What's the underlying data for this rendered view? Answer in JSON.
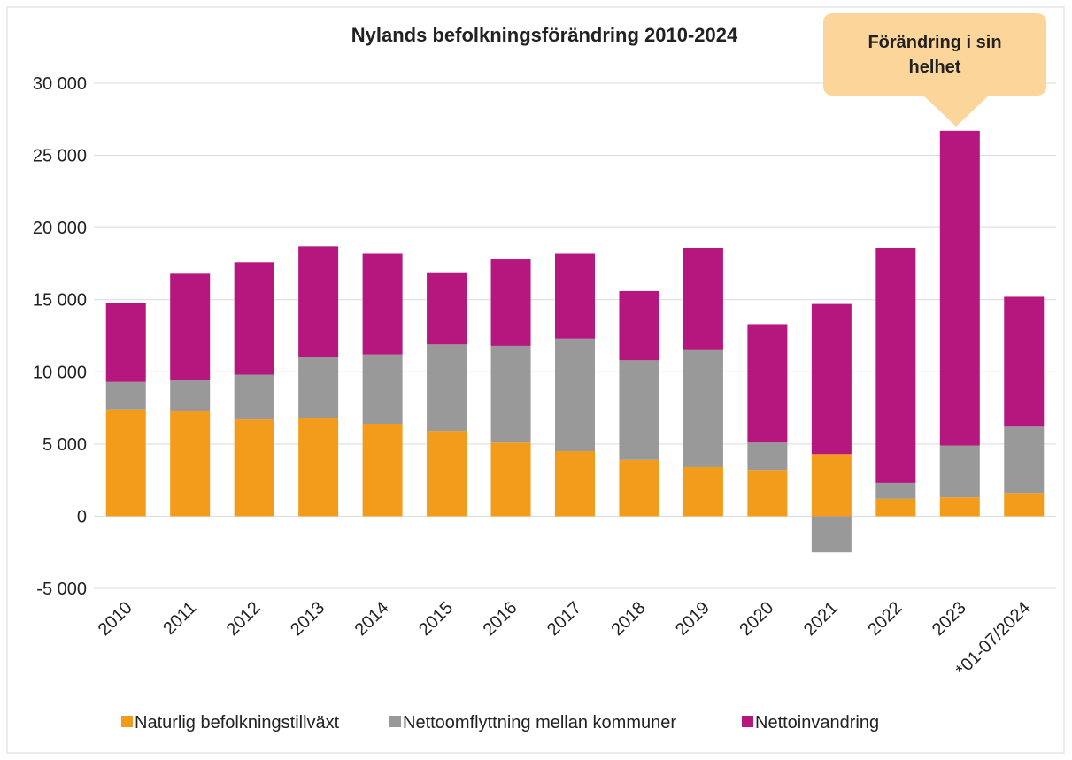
{
  "chart_data": {
    "type": "stacked_bar",
    "title": "Nylands befolkningsförändring 2010-2024",
    "annotation": "Förändring i sin helhet",
    "categories": [
      "2010",
      "2011",
      "2012",
      "2013",
      "2014",
      "2015",
      "2016",
      "2017",
      "2018",
      "2019",
      "2020",
      "2021",
      "2022",
      "2023",
      "*01-07/2024"
    ],
    "series": [
      {
        "name": "Naturlig befolkningstillväxt",
        "color": "#f39c1c",
        "values": [
          7400,
          7300,
          6700,
          6800,
          6400,
          5900,
          5100,
          4500,
          3900,
          3400,
          3200,
          4300,
          1200,
          1300,
          1600
        ]
      },
      {
        "name": "Nettoomflyttning mellan kommuner",
        "color": "#999999",
        "values": [
          1900,
          2100,
          3100,
          4200,
          4800,
          6000,
          6700,
          7800,
          6900,
          8100,
          1900,
          -2500,
          1100,
          3600,
          4600
        ]
      },
      {
        "name": "Nettoinvandring",
        "color": "#b5177e",
        "values": [
          5500,
          7400,
          7800,
          7700,
          7000,
          5000,
          6000,
          5900,
          4800,
          7100,
          8200,
          10400,
          16300,
          21800,
          9000
        ]
      }
    ],
    "ylim": [
      -5000,
      30000
    ],
    "yticks": [
      {
        "value": -5000,
        "label": "-5 000"
      },
      0,
      {
        "value": 5000,
        "label": "5 000"
      },
      {
        "value": 10000,
        "label": "10 000"
      },
      {
        "value": 15000,
        "label": "15 000"
      },
      {
        "value": 20000,
        "label": "20 000"
      },
      {
        "value": 25000,
        "label": "25 000"
      },
      {
        "value": 30000,
        "label": "30 000"
      }
    ],
    "grid": true
  }
}
